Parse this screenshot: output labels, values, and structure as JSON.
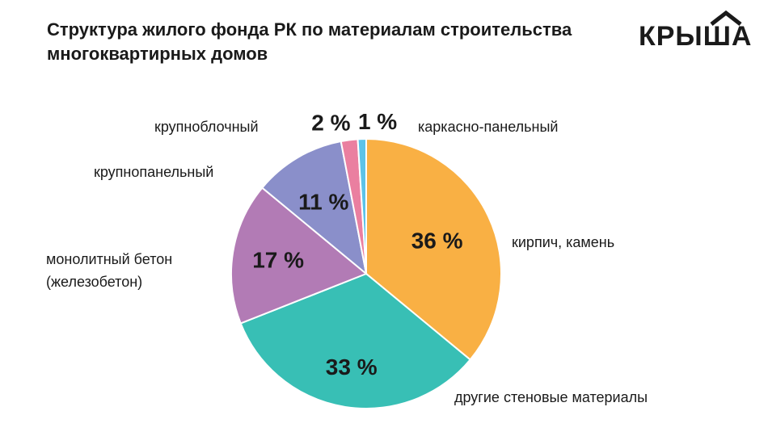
{
  "header": {
    "title_line1": "Структура жилого фонда РК по материалам строительства",
    "title_line2": "многоквартирных домов",
    "logo_text": "КРЫША"
  },
  "chart_data": {
    "type": "pie",
    "title": "Структура жилого фонда РК по материалам строительства многоквартирных домов",
    "unit": "%",
    "slices": [
      {
        "label": "кирпич, камень",
        "value": 36,
        "value_label": "36 %",
        "color": "#f9b044"
      },
      {
        "label": "другие стеновые материалы",
        "value": 33,
        "value_label": "33 %",
        "color": "#38bfb5"
      },
      {
        "label_lines": [
          "монолитный бетон",
          "(железобетон)"
        ],
        "value": 17,
        "value_label": "17 %",
        "color": "#b27bb5"
      },
      {
        "label": "крупнопанельный",
        "value": 11,
        "value_label": "11 %",
        "color": "#8a8fca"
      },
      {
        "label": "крупноблочный",
        "value": 2,
        "value_label": "2 %",
        "color": "#ea7fa0"
      },
      {
        "label": "каркасно-панельный",
        "value": 1,
        "value_label": "1 %",
        "color": "#5cc3e8"
      }
    ]
  }
}
